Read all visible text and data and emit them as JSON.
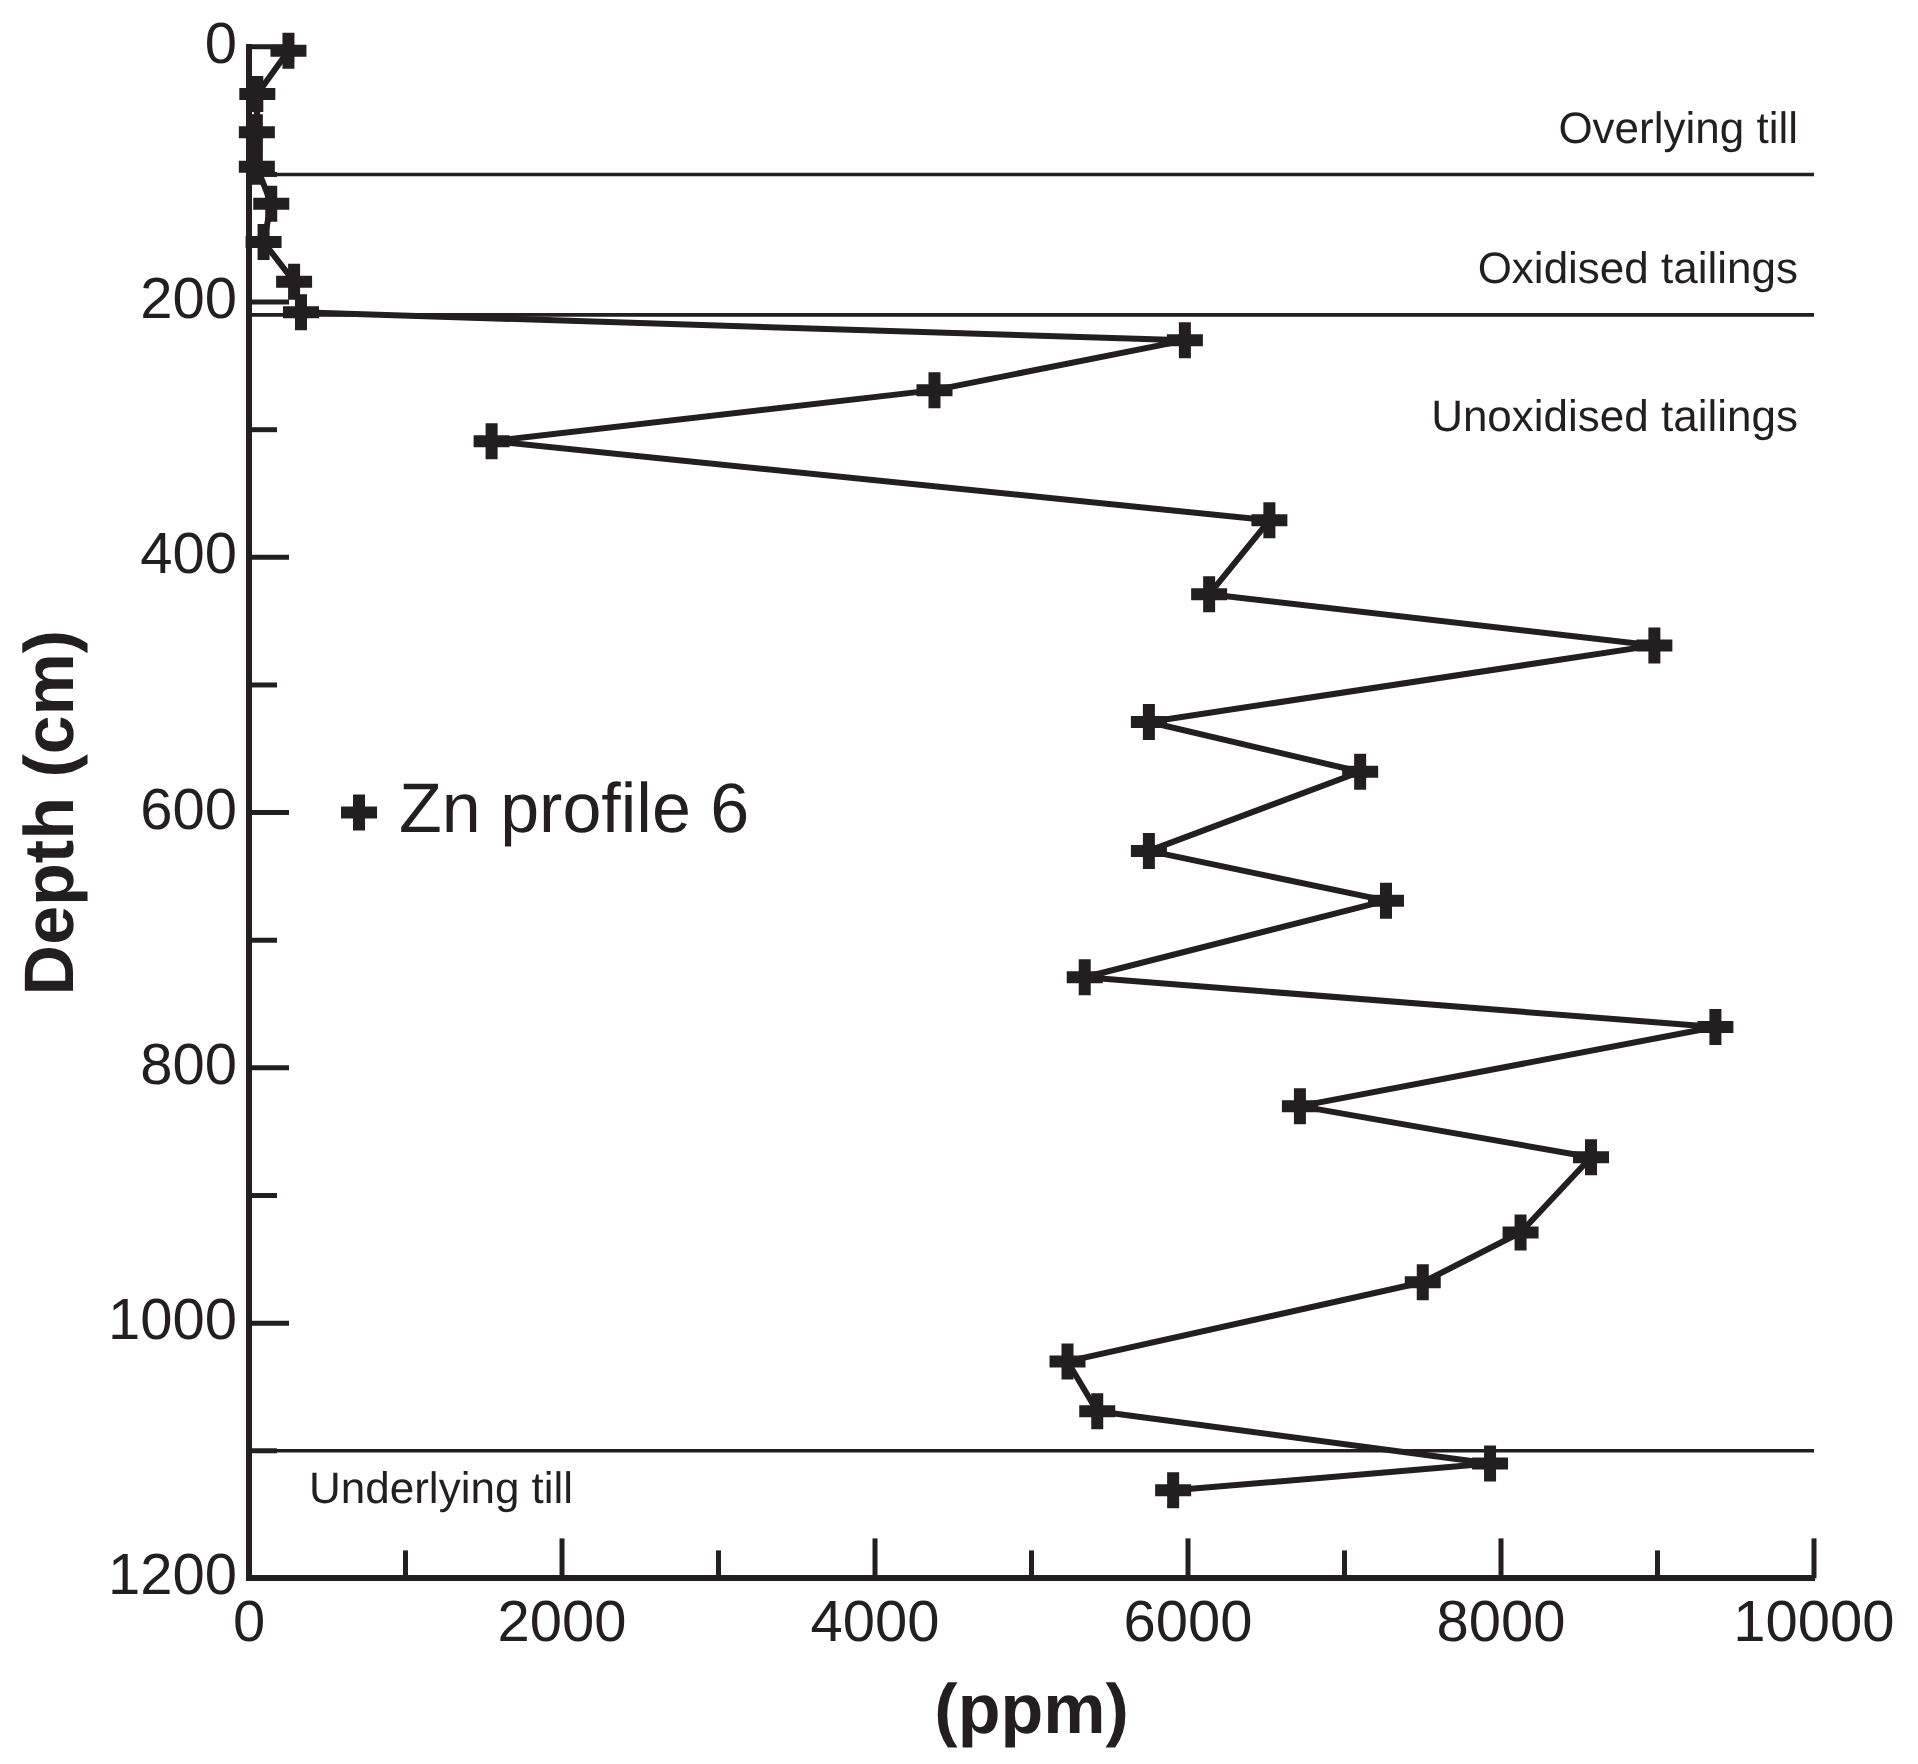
{
  "chart_data": {
    "type": "line",
    "xlabel": "(ppm)",
    "ylabel": "Depth (cm)",
    "series": [
      {
        "name": "Zn profile 6",
        "color": "#231f20",
        "x": [
          252,
          53,
          50,
          50,
          142,
          93,
          288,
          332,
          5980,
          4380,
          1550,
          6520,
          6135,
          8980,
          5750,
          7100,
          5750,
          7265,
          5340,
          9370,
          6715,
          8575,
          8125,
          7500,
          5230,
          5420,
          7930,
          5905
        ],
        "values": [
          3,
          37,
          67,
          94,
          123,
          153,
          184,
          208,
          230,
          269,
          309,
          371,
          429,
          469,
          529,
          568,
          630,
          669,
          729,
          768,
          830,
          870,
          929,
          968,
          1030,
          1069,
          1110,
          1131
        ]
      }
    ],
    "xlim": [
      0,
      10000
    ],
    "xticks": [
      0,
      {
        "value": 1000,
        "label": null
      },
      2000,
      {
        "value": 3000,
        "label": null
      },
      4000,
      {
        "value": 5000,
        "label": null
      },
      6000,
      {
        "value": 7000,
        "label": null
      },
      8000,
      {
        "value": 9000,
        "label": null
      },
      10000
    ],
    "ylim": [
      1200,
      0
    ],
    "yticks": [
      0,
      {
        "value": 100,
        "label": null
      },
      200,
      {
        "value": 300,
        "label": null
      },
      400,
      {
        "value": 500,
        "label": null
      },
      600,
      {
        "value": 700,
        "label": null
      },
      800,
      {
        "value": 900,
        "label": null
      },
      1000,
      {
        "value": 1100,
        "label": null
      },
      1200
    ],
    "ref_lines": [
      {
        "axis": "y",
        "value": 100,
        "label": "Overlying till",
        "color": "#231f20"
      },
      {
        "axis": "y",
        "value": 210,
        "label": "Oxidised tailings",
        "color": "#231f20"
      },
      {
        "axis": "y",
        "value": 1100,
        "color": "#231f20"
      }
    ],
    "annotations": [
      "Unoxidised tailings",
      "Underlying till"
    ],
    "marker": "cross",
    "line_style": "solid",
    "grid": false,
    "legend": "left"
  }
}
